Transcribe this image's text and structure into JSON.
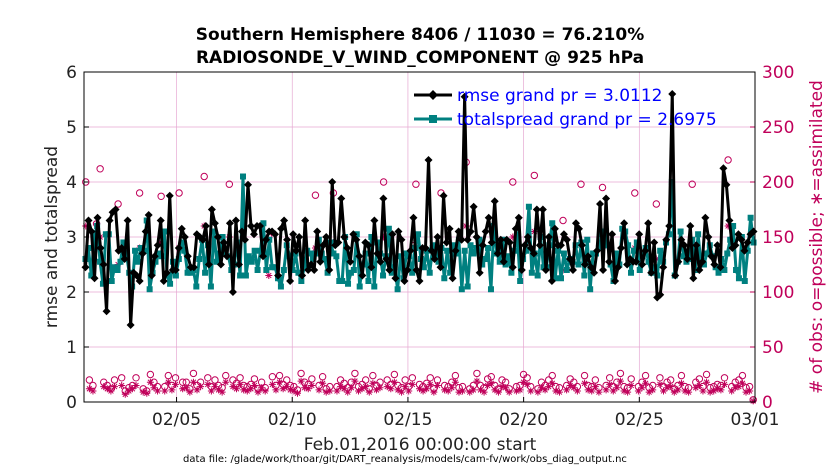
{
  "chart_data": {
    "type": "line",
    "title_line1": "Southern Hemisphere 8406 / 11030 = 76.210%",
    "title_line2": "RADIOSONDE_V_WIND_COMPONENT @ 925 hPa",
    "ylabel_left": "rmse and totalspread",
    "ylabel_right": "# of obs: o=possible; ∗=assimilated",
    "xlabel": "Feb.01,2016 00:00:00 start",
    "footnote": "data file: /glade/work/thoar/git/DART_reanalysis/models/cam-fv/work/obs_diag_output.nc",
    "x_tick_labels": [
      "02/05",
      "02/10",
      "02/15",
      "02/20",
      "02/25",
      "03/01"
    ],
    "x_tick_days": [
      5,
      10,
      15,
      20,
      25,
      30
    ],
    "xlim_days": [
      1,
      30
    ],
    "ylim_left": [
      0,
      6
    ],
    "yticks_left": [
      "0",
      "1",
      "2",
      "3",
      "4",
      "5",
      "6"
    ],
    "ylim_right": [
      0,
      300
    ],
    "yticks_right": [
      "0",
      "50",
      "100",
      "150",
      "200",
      "250",
      "300"
    ],
    "grid": true,
    "legend_position": "top-right",
    "colors": {
      "rmse": "#000000",
      "totalspread": "#008080",
      "obs": "#c0005a",
      "legend_text": "#0000ff",
      "grid": "#e6a8d2"
    },
    "series": [
      {
        "name": "rmse grand pr = 3.0112",
        "values": [
          2.45,
          3.3,
          3.1,
          2.25,
          3.35,
          2.8,
          2.5,
          1.65,
          3.3,
          3.45,
          3.5,
          2.75,
          2.8,
          2.6,
          3.3,
          1.4,
          2.35,
          2.3,
          2.2,
          2.7,
          3.1,
          3.4,
          2.3,
          2.65,
          2.85,
          3.3,
          2.2,
          2.35,
          3.75,
          2.4,
          2.4,
          2.8,
          3.15,
          3.0,
          2.65,
          2.45,
          2.45,
          3.05,
          3.0,
          2.95,
          3.2,
          2.5,
          3.5,
          3.25,
          3.0,
          2.5,
          2.9,
          2.65,
          3.25,
          2.0,
          3.3,
          2.5,
          3.1,
          2.95,
          3.95,
          3.2,
          3.05,
          3.2,
          3.2,
          2.65,
          2.95,
          3.1,
          3.1,
          3.05,
          2.3,
          3.15,
          3.3,
          2.95,
          2.2,
          3.05,
          2.75,
          3.0,
          2.3,
          3.3,
          2.4,
          2.5,
          2.4,
          3.1,
          2.55,
          2.85,
          3.0,
          2.4,
          4.0,
          2.85,
          2.9,
          3.7,
          3.0,
          2.8,
          2.55,
          3.05,
          2.95,
          2.65,
          2.3,
          2.9,
          2.85,
          2.45,
          3.3,
          2.7,
          2.55,
          3.7,
          2.6,
          2.4,
          3.05,
          2.25,
          3.1,
          2.95,
          2.2,
          2.4,
          2.75,
          3.35,
          2.4,
          2.2,
          2.8,
          2.8,
          4.4,
          2.75,
          2.6,
          3.0,
          2.45,
          3.75,
          2.9,
          3.15,
          2.25,
          2.75,
          3.1,
          2.95,
          5.55,
          2.95,
          3.1,
          3.55,
          3.0,
          2.35,
          2.85,
          3.1,
          3.35,
          2.9,
          3.65,
          2.7,
          2.95,
          2.55,
          2.95,
          2.9,
          2.45,
          3.15,
          3.35,
          2.4,
          2.85,
          3.0,
          2.8,
          2.7,
          3.5,
          2.85,
          3.5,
          2.4,
          3.0,
          2.2,
          3.15,
          2.85,
          2.85,
          3.05,
          2.95,
          2.6,
          2.4,
          3.25,
          3.15,
          2.85,
          2.5,
          2.65,
          2.45,
          2.35,
          2.75,
          3.6,
          2.4,
          3.7,
          2.55,
          3.05,
          2.2,
          2.45,
          2.8,
          3.25,
          2.5,
          2.6,
          2.55,
          2.55,
          3.05,
          2.5,
          2.75,
          3.25,
          2.35,
          2.9,
          1.9,
          1.95,
          2.45,
          2.95,
          3.2,
          5.6,
          2.3,
          2.55,
          2.95,
          2.85,
          2.6,
          3.2,
          2.25,
          2.85,
          2.4,
          2.55,
          3.35,
          3.0,
          2.65,
          2.5,
          2.85,
          2.45,
          4.25,
          3.95,
          3.3,
          2.8,
          2.85,
          3.05,
          2.95,
          2.75,
          2.9,
          3.05,
          3.1
        ]
      },
      {
        "name": "totalspread grand pr = 2.6975",
        "values": [
          2.6,
          2.8,
          2.3,
          3.0,
          3.2,
          2.55,
          2.15,
          3.05,
          3.05,
          2.2,
          2.45,
          2.4,
          2.55,
          2.9,
          2.7,
          2.35,
          2.1,
          2.75,
          2.55,
          2.8,
          2.75,
          3.3,
          2.05,
          2.35,
          2.55,
          2.7,
          2.65,
          3.1,
          2.3,
          2.15,
          2.55,
          2.3,
          2.6,
          2.9,
          2.75,
          2.35,
          2.35,
          2.4,
          2.1,
          2.6,
          2.95,
          2.35,
          2.85,
          2.1,
          3.1,
          2.55,
          2.7,
          3.0,
          2.7,
          2.65,
          2.4,
          2.5,
          2.9,
          2.3,
          4.1,
          2.3,
          2.65,
          2.55,
          2.75,
          2.4,
          2.75,
          3.25,
          2.4,
          2.95,
          2.45,
          2.45,
          2.25,
          2.1,
          2.4,
          2.85,
          2.65,
          2.4,
          2.7,
          2.35,
          2.2,
          2.45,
          2.75,
          2.7,
          2.6,
          2.7,
          2.95,
          2.7,
          2.6,
          2.35,
          2.9,
          2.7,
          2.65,
          2.2,
          2.2,
          3.0,
          2.15,
          2.35,
          2.4,
          3.05,
          2.1,
          2.5,
          2.7,
          2.2,
          3.0,
          2.1,
          2.9,
          2.7,
          2.3,
          2.65,
          3.15,
          2.35,
          2.45,
          2.05,
          2.65,
          2.25,
          2.7,
          2.65,
          2.35,
          2.8,
          3.05,
          2.6,
          2.45,
          2.75,
          2.35,
          2.8,
          2.85,
          2.55,
          2.8,
          2.25,
          2.75,
          2.35,
          2.85,
          2.7,
          2.95,
          2.05,
          2.75,
          2.1,
          2.85,
          2.7,
          2.8,
          2.95,
          2.5,
          2.6,
          2.8,
          2.05,
          3.2,
          2.7,
          2.55,
          2.95,
          2.5,
          2.65,
          2.35,
          2.75,
          3.05,
          2.2,
          2.6,
          2.75,
          3.55,
          2.35,
          2.7,
          2.3,
          3.0,
          2.45,
          2.45,
          2.85,
          3.25,
          2.25,
          2.75,
          2.25,
          2.7,
          2.4,
          2.6,
          2.55,
          2.85,
          2.5,
          2.9,
          2.3,
          2.95,
          2.05,
          2.7,
          2.7,
          2.8,
          3.05,
          3.1,
          2.85,
          2.5,
          2.2,
          2.7,
          2.5,
          3.15,
          3.1,
          2.85,
          2.35,
          2.75,
          2.9,
          2.4,
          2.65,
          2.8,
          2.55,
          2.35,
          2.45,
          2.3,
          2.75,
          2.55,
          2.9,
          3.05,
          4.0,
          2.3,
          2.55,
          3.1,
          2.65,
          2.55,
          2.6,
          2.95,
          2.4,
          3.05,
          2.5,
          2.5,
          2.7,
          2.85,
          2.65,
          2.45,
          2.35,
          2.6,
          2.4,
          2.7,
          2.95,
          3.2,
          2.4,
          2.25,
          3.0,
          2.2,
          2.75,
          3.35,
          2.9
        ]
      },
      {
        "name": "possible",
        "axis": "right",
        "values": [
          200,
          20,
          15,
          162,
          212,
          18,
          15,
          12,
          20,
          180,
          22,
          10,
          13,
          15,
          22,
          190,
          12,
          10,
          25,
          18,
          14,
          187,
          14,
          24,
          15,
          22,
          190,
          18,
          18,
          12,
          26,
          15,
          18,
          205,
          22,
          14,
          20,
          15,
          13,
          24,
          198,
          20,
          17,
          22,
          15,
          14,
          16,
          21,
          12,
          18,
          13,
          150,
          23,
          15,
          24,
          16,
          20,
          15,
          14,
          11,
          26,
          18,
          16,
          21,
          188,
          15,
          23,
          12,
          14,
          190,
          14,
          20,
          17,
          13,
          18,
          26,
          14,
          16,
          20,
          12,
          24,
          15,
          18,
          200,
          20,
          16,
          25,
          15,
          13,
          20,
          14,
          22,
          198,
          16,
          14,
          17,
          22,
          12,
          20,
          190,
          15,
          14,
          18,
          24,
          13,
          14,
          218,
          12,
          15,
          26,
          15,
          13,
          21,
          23,
          15,
          12,
          20,
          18,
          12,
          200,
          14,
          15,
          25,
          22,
          14,
          206,
          12,
          18,
          15,
          20,
          24,
          14,
          13,
          165,
          15,
          21,
          18,
          14,
          198,
          24,
          15,
          14,
          20,
          13,
          195,
          15,
          22,
          14,
          18,
          26,
          14,
          13,
          21,
          190,
          14,
          18,
          24,
          13,
          15,
          180,
          22,
          14,
          18,
          20,
          12,
          15,
          24,
          14,
          13,
          198,
          18,
          21,
          14,
          25,
          13,
          14,
          16,
          15,
          22,
          220,
          14,
          18,
          20,
          24,
          13,
          14,
          2
        ]
      },
      {
        "name": "assimilated",
        "axis": "right",
        "values": [
          160,
          12,
          10,
          140,
          150,
          14,
          12,
          10,
          14,
          125,
          15,
          7,
          10,
          12,
          15,
          140,
          9,
          8,
          18,
          13,
          10,
          145,
          10,
          18,
          11,
          16,
          140,
          12,
          13,
          9,
          18,
          11,
          14,
          160,
          16,
          10,
          14,
          11,
          9,
          18,
          150,
          14,
          12,
          16,
          11,
          10,
          12,
          15,
          9,
          13,
          10,
          115,
          16,
          11,
          18,
          12,
          14,
          11,
          10,
          8,
          19,
          13,
          12,
          15,
          140,
          11,
          17,
          9,
          10,
          145,
          10,
          14,
          12,
          9,
          13,
          19,
          10,
          12,
          14,
          9,
          17,
          11,
          13,
          150,
          14,
          12,
          18,
          11,
          9,
          14,
          10,
          16,
          145,
          12,
          10,
          12,
          16,
          9,
          15,
          140,
          11,
          10,
          13,
          18,
          9,
          10,
          160,
          9,
          11,
          19,
          11,
          9,
          15,
          17,
          11,
          9,
          14,
          13,
          9,
          150,
          10,
          11,
          18,
          16,
          10,
          155,
          9,
          13,
          11,
          14,
          17,
          10,
          9,
          120,
          11,
          15,
          13,
          10,
          145,
          17,
          11,
          10,
          14,
          9,
          140,
          11,
          16,
          10,
          13,
          19,
          10,
          9,
          15,
          140,
          10,
          13,
          17,
          9,
          11,
          130,
          16,
          10,
          13,
          14,
          9,
          11,
          17,
          10,
          9,
          145,
          13,
          15,
          10,
          18,
          9,
          10,
          12,
          11,
          16,
          160,
          10,
          13,
          14,
          17,
          9,
          10,
          1
        ]
      }
    ]
  }
}
